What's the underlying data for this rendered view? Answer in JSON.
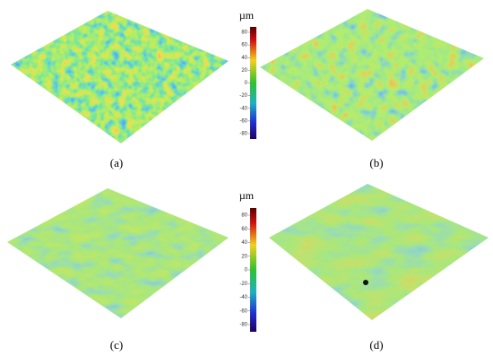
{
  "panels": [
    {
      "label": "(a)"
    },
    {
      "label": "(b)"
    },
    {
      "label": "(c)"
    },
    {
      "label": "(d)"
    }
  ],
  "colorbars": [
    {
      "unit": "µm",
      "ticks": [
        80,
        60,
        40,
        20,
        0,
        -20,
        -40,
        -60,
        -80
      ]
    },
    {
      "unit": "µm",
      "ticks": [
        80,
        60,
        40,
        20,
        0,
        -20,
        -40,
        -60,
        -80
      ]
    }
  ]
}
